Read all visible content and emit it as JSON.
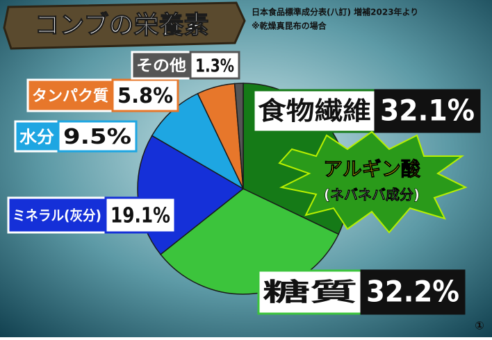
{
  "chart_data": {
    "type": "pie",
    "title": "コンブの栄養素",
    "notes": [
      "日本食品標準成分表(八訂) 増補2023年より",
      "※乾燥真昆布の場合"
    ],
    "categories": [
      "食物繊維",
      "糖質",
      "ミネラル(灰分)",
      "水分",
      "タンパク質",
      "その他"
    ],
    "values": [
      32.1,
      32.2,
      19.1,
      9.5,
      5.8,
      1.3
    ],
    "value_labels": [
      "32.1%",
      "32.2%",
      "19.1%",
      "9.5%",
      "5.8%",
      "1.3%"
    ],
    "colors": [
      "#157a17",
      "#3cc43c",
      "#1530d8",
      "#1ea6e2",
      "#e7772b",
      "#555555"
    ],
    "annotation": [
      "アルギン酸",
      "(ネバネバ成分)"
    ]
  },
  "page_number": "①"
}
